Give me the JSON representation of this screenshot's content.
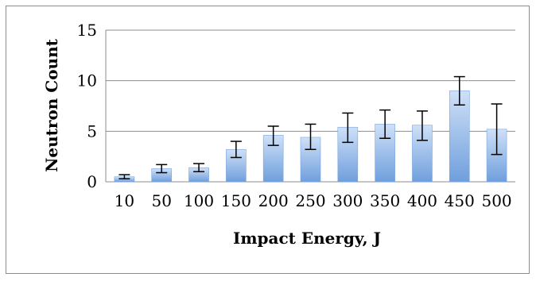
{
  "chart_data": {
    "type": "bar",
    "xlabel": "Impact Energy, J",
    "ylabel": "Neutron Count",
    "categories": [
      "10",
      "50",
      "100",
      "150",
      "200",
      "250",
      "300",
      "350",
      "400",
      "450",
      "500"
    ],
    "values": [
      0.5,
      1.3,
      1.4,
      3.2,
      4.6,
      4.4,
      5.4,
      5.7,
      5.6,
      9.0,
      5.2
    ],
    "error_low": [
      0.3,
      0.9,
      1.0,
      2.4,
      3.6,
      3.2,
      3.9,
      4.3,
      4.1,
      7.6,
      2.7
    ],
    "error_high": [
      0.7,
      1.7,
      1.8,
      4.0,
      5.5,
      5.7,
      6.8,
      7.1,
      7.0,
      10.4,
      7.7
    ],
    "ylim": [
      0,
      15
    ],
    "yticks": [
      "0",
      "5",
      "10",
      "15"
    ],
    "grid": true,
    "colors": {
      "bar_top": "#cfe0f8",
      "bar_bottom": "#6f9fdc",
      "bar_edge": "#7aa6de",
      "grid": "#8c8c8c",
      "error": "#000000"
    }
  }
}
